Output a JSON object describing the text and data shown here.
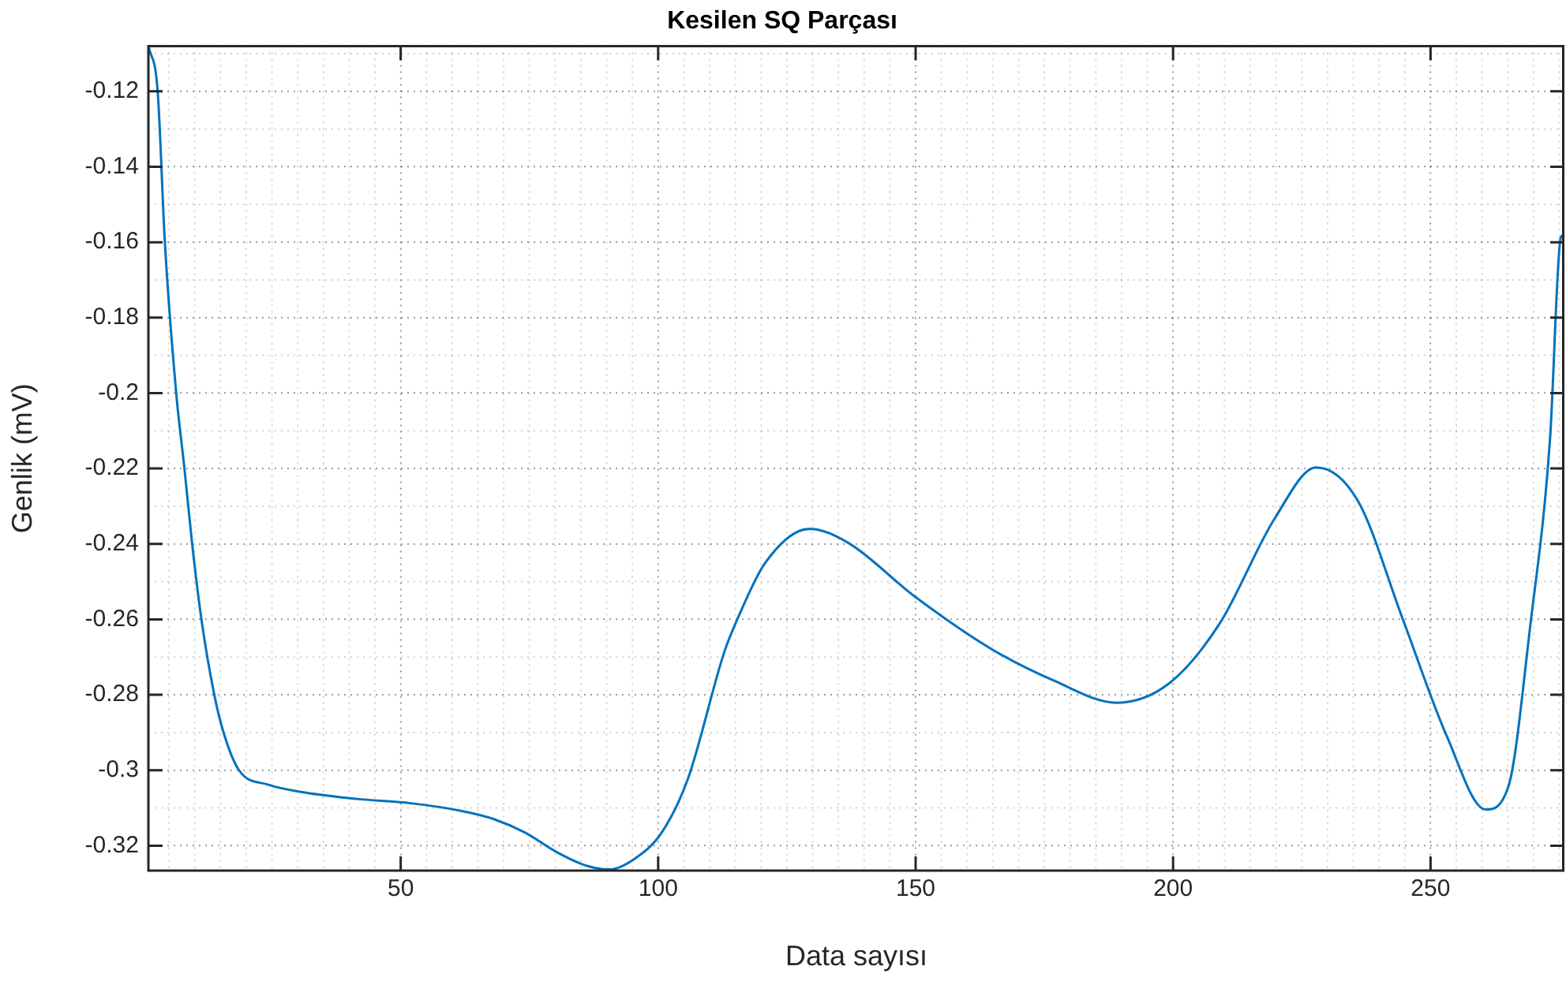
{
  "chart_data": {
    "type": "line",
    "title": "Kesilen SQ Parçası",
    "xlabel": "Data sayısı",
    "ylabel": "Genlik (mV)",
    "x": [
      1,
      2.8,
      4.2,
      6.4,
      8.0,
      9.5,
      11.3,
      13.8,
      15.6,
      18.6,
      24.2,
      31.4,
      41.5,
      51.7,
      61.9,
      68,
      74.1,
      80.3,
      86.3,
      90.5,
      95.5,
      100.7,
      105.8,
      112.9,
      115.4,
      120.8,
      129.4,
      136.9,
      149.8,
      164.9,
      176.8,
      189.1,
      199.3,
      209,
      219.8,
      227.8,
      235.9,
      244.6,
      253.2,
      260.7,
      265.1,
      269.4,
      273.2,
      275.3,
      276
    ],
    "series": [
      {
        "color": "#0072bd",
        "values": [
          -0.108,
          -0.12,
          -0.16,
          -0.2,
          -0.22,
          -0.24,
          -0.26,
          -0.28,
          -0.29,
          -0.3,
          -0.3038,
          -0.3059,
          -0.3076,
          -0.3087,
          -0.3108,
          -0.3129,
          -0.3165,
          -0.3217,
          -0.3254,
          -0.3263,
          -0.3234,
          -0.3165,
          -0.3022,
          -0.2684,
          -0.2599,
          -0.245,
          -0.236,
          -0.2397,
          -0.2539,
          -0.268,
          -0.2762,
          -0.2821,
          -0.2769,
          -0.2612,
          -0.2331,
          -0.2197,
          -0.2286,
          -0.2599,
          -0.2911,
          -0.3104,
          -0.3044,
          -0.2613,
          -0.2122,
          -0.1587,
          -0.158
        ]
      }
    ],
    "xlim": [
      1,
      276
    ],
    "ylim": [
      -0.3266,
      -0.108
    ],
    "xticks": [
      50,
      100,
      150,
      200,
      250
    ],
    "yticks": [
      -0.32,
      -0.3,
      -0.28,
      -0.26,
      -0.24,
      -0.22,
      -0.2,
      -0.18,
      -0.16,
      -0.14,
      -0.12
    ],
    "grid": true,
    "legend": false,
    "marker": "none",
    "line_style": "solid"
  }
}
